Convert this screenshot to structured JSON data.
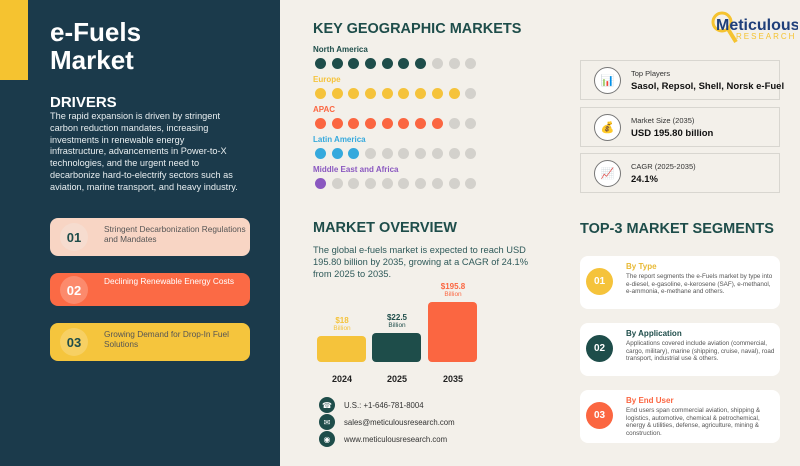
{
  "header": {
    "title_line1": "e-Fuels",
    "title_line2": "Market"
  },
  "drivers": {
    "heading": "DRIVERS",
    "text": "The rapid expansion is driven by stringent carbon reduction mandates, increasing investments in renewable energy infrastructure, advancements in Power-to-X technologies, and the urgent need to decarbonize hard-to-electrify sectors such as aviation, marine transport, and heavy industry.",
    "items": [
      {
        "num": "01",
        "label": "Stringent Decarbonization Regulations and Mandates",
        "color": "#f8d5c4"
      },
      {
        "num": "02",
        "label": "Declining Renewable Energy Costs",
        "color": "#fb6a45"
      },
      {
        "num": "03",
        "label": "Growing Demand for Drop-In Fuel Solutions",
        "color": "#f5c53d"
      }
    ]
  },
  "geo": {
    "heading": "KEY GEOGRAPHIC MARKETS",
    "regions": [
      {
        "name": "North America",
        "filled": 7,
        "total": 10,
        "color": "#1e4d4a"
      },
      {
        "name": "Europe",
        "filled": 9,
        "total": 10,
        "color": "#f5c33b"
      },
      {
        "name": "APAC",
        "filled": 8,
        "total": 10,
        "color": "#fb6641"
      },
      {
        "name": "Latin America",
        "filled": 3,
        "total": 10,
        "color": "#35a9dd"
      },
      {
        "name": "Middle East and Africa",
        "filled": 1,
        "total": 10,
        "color": "#8a58c0"
      }
    ]
  },
  "logo": {
    "name": "Meticulous",
    "sub": "RESEARCH"
  },
  "info": [
    {
      "icon": "bar-chart-icon",
      "label": "Top Players",
      "value": "Sasol, Repsol, Shell, Norsk e-Fuel"
    },
    {
      "icon": "money-bag-icon",
      "label": "Market Size (2035)",
      "value": "USD 195.80 billion"
    },
    {
      "icon": "trend-chart-icon",
      "label": "CAGR (2025-2035)",
      "value": "24.1%"
    }
  ],
  "overview": {
    "heading": "MARKET OVERVIEW",
    "text": "The global e-fuels market is expected to reach USD 195.80 billion by 2035, growing at a CAGR of 24.1% from 2025 to 2035.",
    "bars": [
      {
        "year": "2024",
        "value": 18,
        "label": "$18",
        "unit": "Billion",
        "color": "#f5c33b"
      },
      {
        "year": "2025",
        "value": 22.5,
        "label": "$22.5",
        "unit": "Billion",
        "color": "#1e4d4a"
      },
      {
        "year": "2035",
        "value": 195.8,
        "label": "$195.8",
        "unit": "Billion",
        "color": "#fb6641"
      }
    ]
  },
  "contact": {
    "phone": "U.S.: +1-646-781-8004",
    "email": "sales@meticulousresearch.com",
    "web": "www.meticulousresearch.com"
  },
  "segments": {
    "heading": "TOP-3 MARKET SEGMENTS",
    "items": [
      {
        "num": "01",
        "title": "By Type",
        "desc": "The report segments the e-Fuels market by type into e-diesel, e-gasoline, e-kerosene (SAF), e-methanol, e-ammonia, e-methane and others.",
        "color": "#f5c33b"
      },
      {
        "num": "02",
        "title": "By Application",
        "desc": "Applications covered include aviation (commercial, cargo, military), marine (shipping, cruise, naval), road transport, industrial use & others.",
        "color": "#1e4d4a"
      },
      {
        "num": "03",
        "title": "By End User",
        "desc": "End users span commercial aviation, shipping & logistics, automotive, chemical & petrochemical, energy & utilities, defense, agriculture, mining & construction.",
        "color": "#fb6641"
      }
    ]
  }
}
